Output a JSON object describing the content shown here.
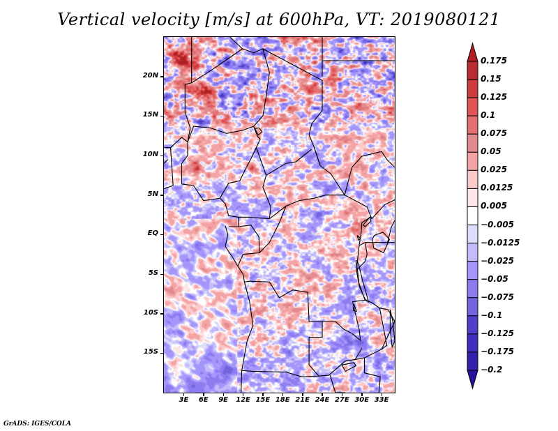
{
  "chart_data": {
    "type": "heatmap",
    "title": "Vertical velocity [m/s] at 600hPa, VT: 2019080121",
    "variable": "Vertical velocity",
    "units": "m/s",
    "level": "600hPa",
    "valid_time": "2019080121",
    "xlabel": "",
    "ylabel": "",
    "x_range_deg": [
      0,
      35
    ],
    "y_range_deg": [
      -20,
      25
    ],
    "x_ticks": [
      "3E",
      "6E",
      "9E",
      "12E",
      "15E",
      "18E",
      "21E",
      "24E",
      "27E",
      "30E",
      "33E"
    ],
    "x_tick_values": [
      3,
      6,
      9,
      12,
      15,
      18,
      21,
      24,
      27,
      30,
      33
    ],
    "y_ticks": [
      "20N",
      "15N",
      "10N",
      "5N",
      "EQ",
      "5S",
      "10S",
      "15S"
    ],
    "y_tick_values": [
      20,
      15,
      10,
      5,
      0,
      -5,
      -10,
      -15
    ],
    "grid": false,
    "legend": {
      "type": "colorbar",
      "placement": "right",
      "orientation": "vertical",
      "extend": "both",
      "levels": [
        "0.175",
        "0.15",
        "0.125",
        "0.1",
        "0.075",
        "0.05",
        "0.025",
        "0.0125",
        "0.005",
        "−0.005",
        "−0.0125",
        "−0.025",
        "−0.05",
        "−0.075",
        "−0.1",
        "−0.125",
        "−0.175",
        "−0.2"
      ],
      "colors": [
        "#b21e22",
        "#b92c2f",
        "#cd3b3e",
        "#e25355",
        "#e47073",
        "#e18b8e",
        "#f4a3a5",
        "#fcc9ca",
        "#fde6e6",
        "#ffffff",
        "#dcdcfb",
        "#c3bbfb",
        "#a596fb",
        "#8c7cf0",
        "#7266e0",
        "#4f40cc",
        "#3e2fbe",
        "#3022ac",
        "#2a12a0"
      ]
    },
    "field_description": "Noisy mesoscale vertical velocity field over Central/West Africa; strongest ascent (red) over Niger/Chad north of 15N and along the Cameroon line and western Rift (~29E, 1N); broad weak subsidence (blue) bands oriented NW-SE over the South Atlantic off Angola.",
    "map_features": [
      "coastlines",
      "country borders",
      "lakes"
    ]
  },
  "footer": {
    "credit": "GrADS: IGES/COLA"
  }
}
